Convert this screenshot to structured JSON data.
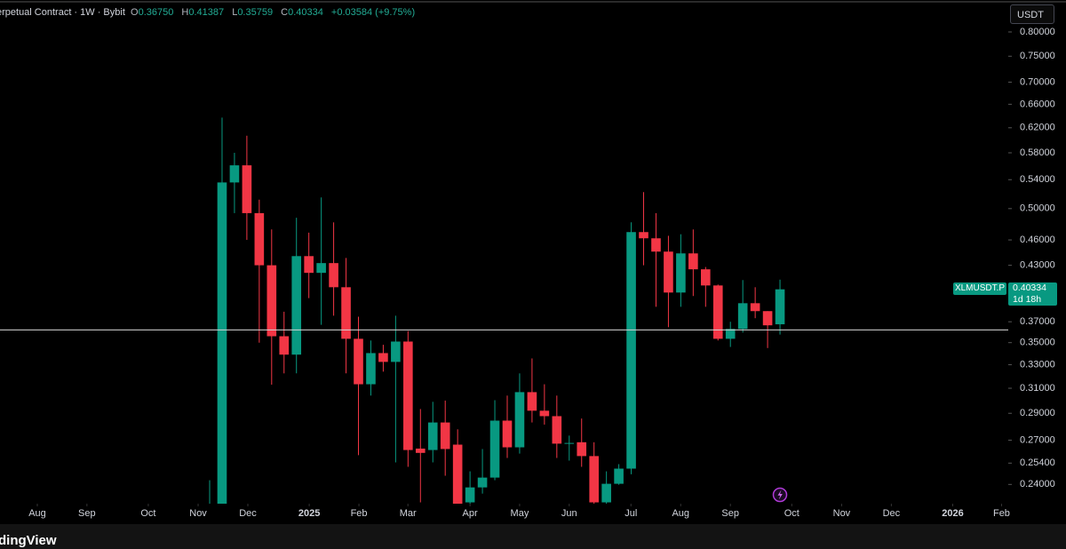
{
  "chart_data": {
    "type": "candlestick",
    "header": {
      "symbol_text": "erpetual Contract · 1W · Bybit",
      "ohlc": [
        {
          "label": "O",
          "value": "0.36750"
        },
        {
          "label": "H",
          "value": "0.41387"
        },
        {
          "label": "L",
          "value": "0.35759"
        },
        {
          "label": "C",
          "value": "0.40334"
        }
      ],
      "change": "+0.03584 (+9.75%)"
    },
    "currency_button": "USDT",
    "last_price_tag": {
      "symbol": "XLMUSDT.P",
      "price": "0.40334",
      "countdown": "1d 18h"
    },
    "footer_logo": "dingView",
    "categories": [
      null,
      null,
      null,
      null,
      null,
      null,
      null,
      null,
      null,
      null,
      null,
      null,
      null,
      null,
      null,
      null,
      null,
      null,
      null,
      null,
      null,
      null,
      null,
      null,
      null,
      null,
      null,
      null,
      null,
      null,
      null,
      null,
      null,
      null,
      null,
      null,
      null,
      null,
      null,
      null,
      null,
      null,
      null,
      null,
      null,
      null,
      null
    ],
    "open": [
      0.215,
      0.2,
      0.536,
      0.561,
      0.494,
      0.43,
      0.356,
      0.339,
      0.4406,
      0.4214,
      0.4325,
      0.4056,
      0.3536,
      0.3133,
      0.3404,
      0.3325,
      0.351,
      0.264,
      0.263,
      0.283,
      0.2668,
      0.2288,
      0.2381,
      0.2444,
      0.2844,
      0.2649,
      0.3068,
      0.292,
      0.2878,
      0.2675,
      0.2685,
      0.2588,
      0.2288,
      0.2404,
      0.2503,
      0.4697,
      0.462,
      0.4459,
      0.3999,
      0.4438,
      0.4254,
      0.4075,
      0.3536,
      0.363,
      0.3887,
      0.3806,
      0.3675
    ],
    "high": [
      0.2427,
      0.637,
      0.58,
      0.607,
      0.512,
      0.473,
      0.38,
      0.488,
      0.469,
      0.515,
      0.482,
      0.4385,
      0.375,
      0.352,
      0.348,
      0.376,
      0.361,
      0.2933,
      0.299,
      0.3,
      0.2779,
      0.2485,
      0.2637,
      0.3003,
      0.304,
      0.3225,
      0.3356,
      0.3133,
      0.304,
      0.2733,
      0.286,
      0.2685,
      0.2485,
      0.2533,
      0.482,
      0.5224,
      0.494,
      0.4651,
      0.467,
      0.473,
      0.428,
      0.4085,
      0.37,
      0.4134,
      0.4056,
      0.3806,
      0.41387
    ],
    "low": [
      0.21,
      0.19,
      0.494,
      0.46,
      0.35,
      0.313,
      0.3225,
      0.3225,
      0.394,
      0.367,
      0.376,
      0.3225,
      0.2594,
      0.304,
      0.324,
      0.2545,
      0.2515,
      0.2288,
      0.2545,
      0.2456,
      0.226,
      0.226,
      0.2342,
      0.2427,
      0.2575,
      0.2605,
      0.283,
      0.2814,
      0.2575,
      0.2557,
      0.2515,
      0.227,
      0.227,
      0.2398,
      0.2466,
      0.43,
      0.385,
      0.3647,
      0.385,
      0.3962,
      0.385,
      0.352,
      0.346,
      0.3595,
      0.3735,
      0.345,
      0.35759
    ],
    "close": [
      0.222,
      0.536,
      0.561,
      0.494,
      0.43,
      0.356,
      0.339,
      0.4406,
      0.4214,
      0.4325,
      0.4056,
      0.3536,
      0.3133,
      0.3404,
      0.3325,
      0.351,
      0.263,
      0.261,
      0.283,
      0.2637,
      0.2278,
      0.2381,
      0.2444,
      0.2844,
      0.2649,
      0.3068,
      0.292,
      0.2878,
      0.2675,
      0.268,
      0.2588,
      0.2288,
      0.2404,
      0.2503,
      0.4697,
      0.462,
      0.4459,
      0.3999,
      0.4438,
      0.4254,
      0.4075,
      0.3536,
      0.363,
      0.3887,
      0.3806,
      0.3665,
      0.40334
    ],
    "up_color": "#089981",
    "down_color": "#f23645",
    "hline": 0.362,
    "log_scale": true,
    "ylim": [
      0.228,
      0.871
    ],
    "yticks": [
      {
        "value": 0.8,
        "label": "0.80000"
      },
      {
        "value": 0.75,
        "label": "0.75000"
      },
      {
        "value": 0.7,
        "label": "0.70000"
      },
      {
        "value": 0.66,
        "label": "0.66000"
      },
      {
        "value": 0.62,
        "label": "0.62000"
      },
      {
        "value": 0.58,
        "label": "0.58000"
      },
      {
        "value": 0.54,
        "label": "0.54000"
      },
      {
        "value": 0.5,
        "label": "0.50000"
      },
      {
        "value": 0.46,
        "label": "0.46000"
      },
      {
        "value": 0.43,
        "label": "0.43000"
      },
      {
        "value": 0.37,
        "label": "0.37000"
      },
      {
        "value": 0.35,
        "label": "0.35000"
      },
      {
        "value": 0.33,
        "label": "0.33000"
      },
      {
        "value": 0.31,
        "label": "0.31000"
      },
      {
        "value": 0.29,
        "label": "0.29000"
      },
      {
        "value": 0.27,
        "label": "0.27000"
      },
      {
        "value": 0.254,
        "label": "0.25400"
      },
      {
        "value": 0.24,
        "label": "0.24000"
      }
    ],
    "xlim": [
      -16.91,
      64.41
    ],
    "xticks": [
      {
        "value": -13.9,
        "label": "Aug"
      },
      {
        "value": -9.9,
        "label": "Sep"
      },
      {
        "value": -4.95,
        "label": "Oct"
      },
      {
        "value": -0.93,
        "label": "Nov"
      },
      {
        "value": 3.08,
        "label": "Dec"
      },
      {
        "value": 8.03,
        "label": "2025"
      },
      {
        "value": 12.04,
        "label": "Feb"
      },
      {
        "value": 15.99,
        "label": "Mar"
      },
      {
        "value": 21.0,
        "label": "Apr"
      },
      {
        "value": 25.0,
        "label": "May"
      },
      {
        "value": 29.0,
        "label": "Jun"
      },
      {
        "value": 33.98,
        "label": "Jul"
      },
      {
        "value": 37.99,
        "label": "Aug"
      },
      {
        "value": 42.0,
        "label": "Sep"
      },
      {
        "value": 46.95,
        "label": "Oct"
      },
      {
        "value": 50.97,
        "label": "Nov"
      },
      {
        "value": 54.98,
        "label": "Dec"
      },
      {
        "value": 59.93,
        "label": "2026"
      },
      {
        "value": 63.87,
        "label": "Feb"
      }
    ]
  }
}
